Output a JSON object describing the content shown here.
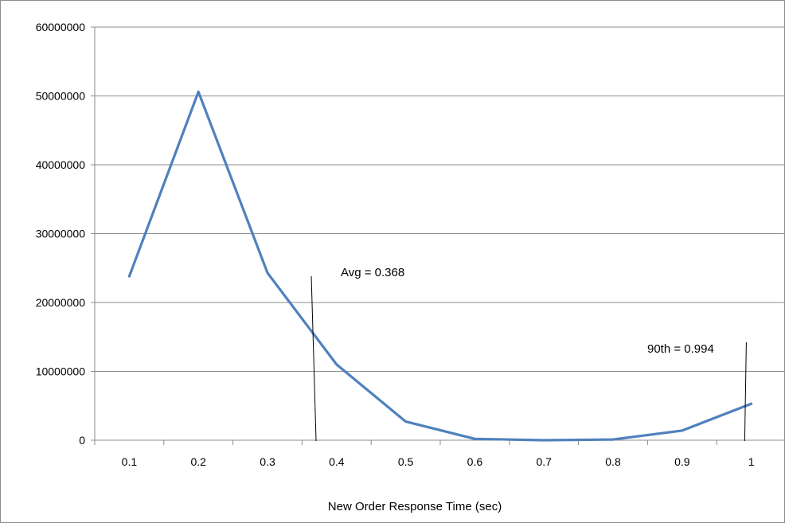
{
  "chart_data": {
    "type": "line",
    "title": "",
    "xlabel": "New Order Response Time (sec)",
    "ylabel": "",
    "categories": [
      "0.1",
      "0.2",
      "0.3",
      "0.4",
      "0.5",
      "0.6",
      "0.7",
      "0.8",
      "0.9",
      "1"
    ],
    "series": [
      {
        "values": [
          23800000,
          50600000,
          24300000,
          11000000,
          2700000,
          200000,
          0,
          100000,
          1400000,
          5300000
        ],
        "color": "#4F81BD"
      }
    ],
    "ylim": [
      0,
      60000000
    ],
    "yticks": [
      "0",
      "10000000",
      "20000000",
      "30000000",
      "40000000",
      "50000000",
      "60000000"
    ],
    "grid": true,
    "legend": "none",
    "annotations": [
      {
        "text": "Avg = 0.368",
        "x": 0.368
      },
      {
        "text": "90th = 0.994",
        "x": 0.994
      }
    ]
  }
}
